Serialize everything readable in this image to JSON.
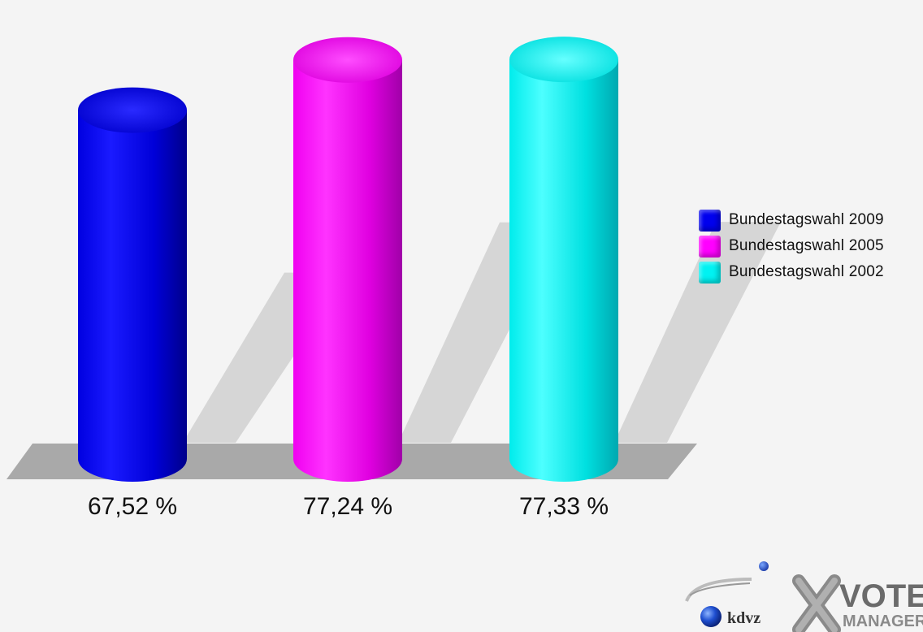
{
  "chart_data": {
    "type": "bar",
    "style": "3d-cylinder",
    "categories": [
      "Bundestagswahl 2009",
      "Bundestagswahl 2005",
      "Bundestagswahl 2002"
    ],
    "values": [
      67.52,
      77.24,
      77.33
    ],
    "value_labels": [
      "67,52 %",
      "77,24 %",
      "77,33 %"
    ],
    "colors": [
      "#0000ee",
      "#ff00ff",
      "#00f2f2"
    ],
    "ylim": [
      0,
      100
    ],
    "grid": false,
    "legend_position": "right"
  },
  "legend": {
    "items": [
      {
        "label": "Bundestagswahl 2009",
        "color": "#0000ee"
      },
      {
        "label": "Bundestagswahl 2005",
        "color": "#ff00ff"
      },
      {
        "label": "Bundestagswahl 2002",
        "color": "#00f2f2"
      }
    ]
  },
  "logo": {
    "kdvz": "kdvz",
    "vote": "VOTE",
    "manager": "MANAGER"
  }
}
